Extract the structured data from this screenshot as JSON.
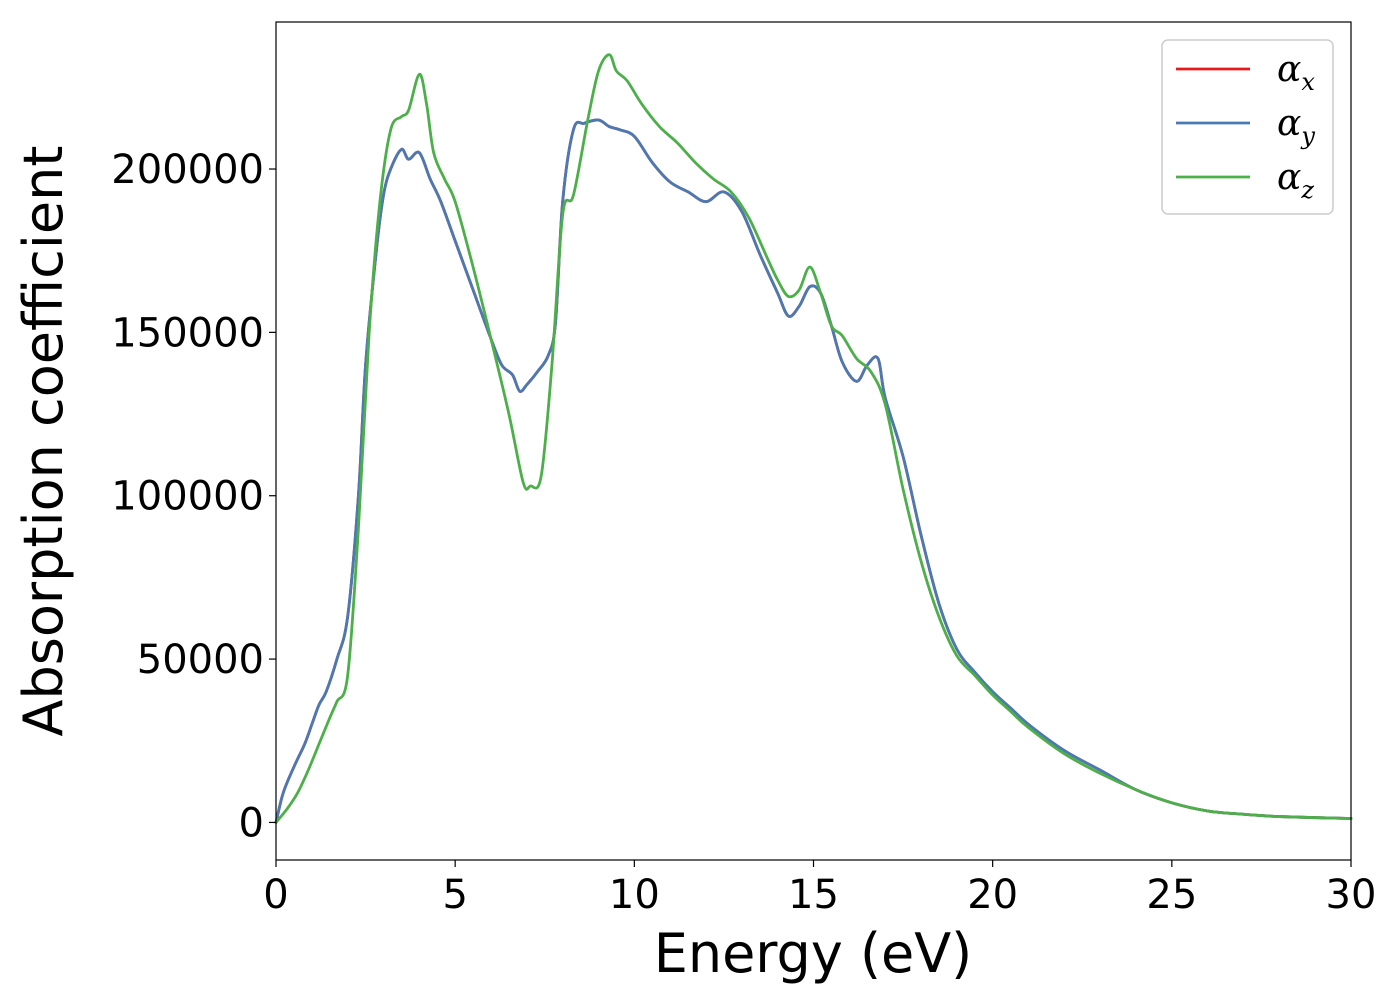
{
  "chart_data": {
    "type": "line",
    "title": "",
    "xlabel": "Energy (eV)",
    "ylabel": "Absorption coefficient",
    "xlim": [
      0,
      30
    ],
    "ylim": [
      -11500,
      245000
    ],
    "xticks": [
      0,
      5,
      10,
      15,
      20,
      25,
      30
    ],
    "xtick_labels": [
      "0",
      "5",
      "10",
      "15",
      "20",
      "25",
      "30"
    ],
    "yticks": [
      0,
      50000,
      100000,
      150000,
      200000
    ],
    "ytick_labels": [
      "0",
      "50000",
      "100000",
      "150000",
      "200000"
    ],
    "grid": false,
    "legend_position": "top-right",
    "series": [
      {
        "name": "αx",
        "symbol": "α",
        "subscript": "x",
        "color": "#e41a1c",
        "x": [
          0,
          0.2,
          0.5,
          0.8,
          1.0,
          1.2,
          1.4,
          1.7,
          2.0,
          2.3,
          2.5,
          2.8,
          3.0,
          3.2,
          3.5,
          3.7,
          4.0,
          4.3,
          4.6,
          5.0,
          5.5,
          6.0,
          6.3,
          6.6,
          6.8,
          7.0,
          7.3,
          7.6,
          7.8,
          8.0,
          8.3,
          8.6,
          9.0,
          9.3,
          9.6,
          10.0,
          10.5,
          11.0,
          11.5,
          12.0,
          12.5,
          13.0,
          13.5,
          14.0,
          14.3,
          14.6,
          14.9,
          15.2,
          15.5,
          15.8,
          16.2,
          16.5,
          16.8,
          17.0,
          17.5,
          18.0,
          18.5,
          19.0,
          19.5,
          20.0,
          20.5,
          21.0,
          22.0,
          23.0,
          24.0,
          25.0,
          26.0,
          27.0,
          28.0,
          30.0
        ],
        "values": [
          0,
          9000,
          17000,
          24000,
          30000,
          36000,
          40000,
          50000,
          63000,
          100000,
          140000,
          175000,
          192000,
          200000,
          206000,
          203000,
          205000,
          197000,
          190000,
          178000,
          163000,
          148000,
          140000,
          137000,
          132000,
          134000,
          138000,
          143000,
          153000,
          190000,
          212000,
          214000,
          215000,
          213000,
          212000,
          210000,
          202000,
          196000,
          193000,
          190000,
          193000,
          187000,
          174000,
          162000,
          155000,
          158000,
          164000,
          162000,
          152000,
          141000,
          135000,
          140000,
          142000,
          130000,
          112000,
          88000,
          67000,
          53000,
          46000,
          40000,
          35000,
          30000,
          22000,
          16000,
          10000,
          6000,
          3500,
          2500,
          1800,
          1200
        ]
      },
      {
        "name": "αy",
        "symbol": "α",
        "subscript": "y",
        "color": "#4a7ab3",
        "x": [
          0,
          0.2,
          0.5,
          0.8,
          1.0,
          1.2,
          1.4,
          1.7,
          2.0,
          2.3,
          2.5,
          2.8,
          3.0,
          3.2,
          3.5,
          3.7,
          4.0,
          4.3,
          4.6,
          5.0,
          5.5,
          6.0,
          6.3,
          6.6,
          6.8,
          7.0,
          7.3,
          7.6,
          7.8,
          8.0,
          8.3,
          8.6,
          9.0,
          9.3,
          9.6,
          10.0,
          10.5,
          11.0,
          11.5,
          12.0,
          12.5,
          13.0,
          13.5,
          14.0,
          14.3,
          14.6,
          14.9,
          15.2,
          15.5,
          15.8,
          16.2,
          16.5,
          16.8,
          17.0,
          17.5,
          18.0,
          18.5,
          19.0,
          19.5,
          20.0,
          20.5,
          21.0,
          22.0,
          23.0,
          24.0,
          25.0,
          26.0,
          27.0,
          28.0,
          30.0
        ],
        "values": [
          0,
          9000,
          17000,
          24000,
          30000,
          36000,
          40000,
          50000,
          63000,
          100000,
          140000,
          175000,
          192000,
          200000,
          206000,
          203000,
          205000,
          197000,
          190000,
          178000,
          163000,
          148000,
          140000,
          137000,
          132000,
          134000,
          138000,
          143000,
          153000,
          190000,
          212000,
          214000,
          215000,
          213000,
          212000,
          210000,
          202000,
          196000,
          193000,
          190000,
          193000,
          187000,
          174000,
          162000,
          155000,
          158000,
          164000,
          162000,
          152000,
          141000,
          135000,
          140000,
          142000,
          130000,
          112000,
          88000,
          67000,
          53000,
          46000,
          40000,
          35000,
          30000,
          22000,
          16000,
          10000,
          6000,
          3500,
          2500,
          1800,
          1200
        ]
      },
      {
        "name": "αz",
        "symbol": "α",
        "subscript": "z",
        "color": "#4daf4a",
        "x": [
          0,
          0.3,
          0.6,
          0.9,
          1.2,
          1.5,
          1.7,
          2.0,
          2.3,
          2.6,
          2.9,
          3.2,
          3.5,
          3.7,
          4.0,
          4.2,
          4.4,
          4.7,
          5.0,
          5.5,
          6.0,
          6.5,
          6.9,
          7.1,
          7.4,
          7.7,
          8.0,
          8.3,
          8.7,
          9.0,
          9.3,
          9.5,
          9.8,
          10.2,
          10.7,
          11.2,
          11.7,
          12.2,
          12.7,
          13.2,
          13.7,
          14.0,
          14.3,
          14.6,
          14.9,
          15.2,
          15.5,
          15.8,
          16.2,
          16.6,
          17.0,
          17.5,
          18.0,
          18.5,
          19.0,
          19.5,
          20.0,
          20.5,
          21.0,
          22.0,
          23.0,
          24.0,
          25.0,
          26.0,
          27.0,
          28.0,
          30.0
        ],
        "values": [
          0,
          4000,
          9000,
          16000,
          24000,
          32000,
          37000,
          45000,
          90000,
          150000,
          190000,
          212000,
          216000,
          218000,
          229000,
          220000,
          205000,
          197000,
          190000,
          170000,
          148000,
          125000,
          104000,
          103000,
          106000,
          140000,
          186000,
          192000,
          215000,
          230000,
          235000,
          230000,
          227000,
          220000,
          213000,
          208000,
          202000,
          197000,
          193000,
          185000,
          173000,
          166000,
          161000,
          163000,
          170000,
          162000,
          152000,
          149000,
          142000,
          138000,
          128000,
          102000,
          80000,
          63000,
          51000,
          45000,
          39000,
          34000,
          29000,
          21000,
          15000,
          10000,
          6000,
          3500,
          2500,
          1800,
          1200
        ]
      }
    ]
  }
}
